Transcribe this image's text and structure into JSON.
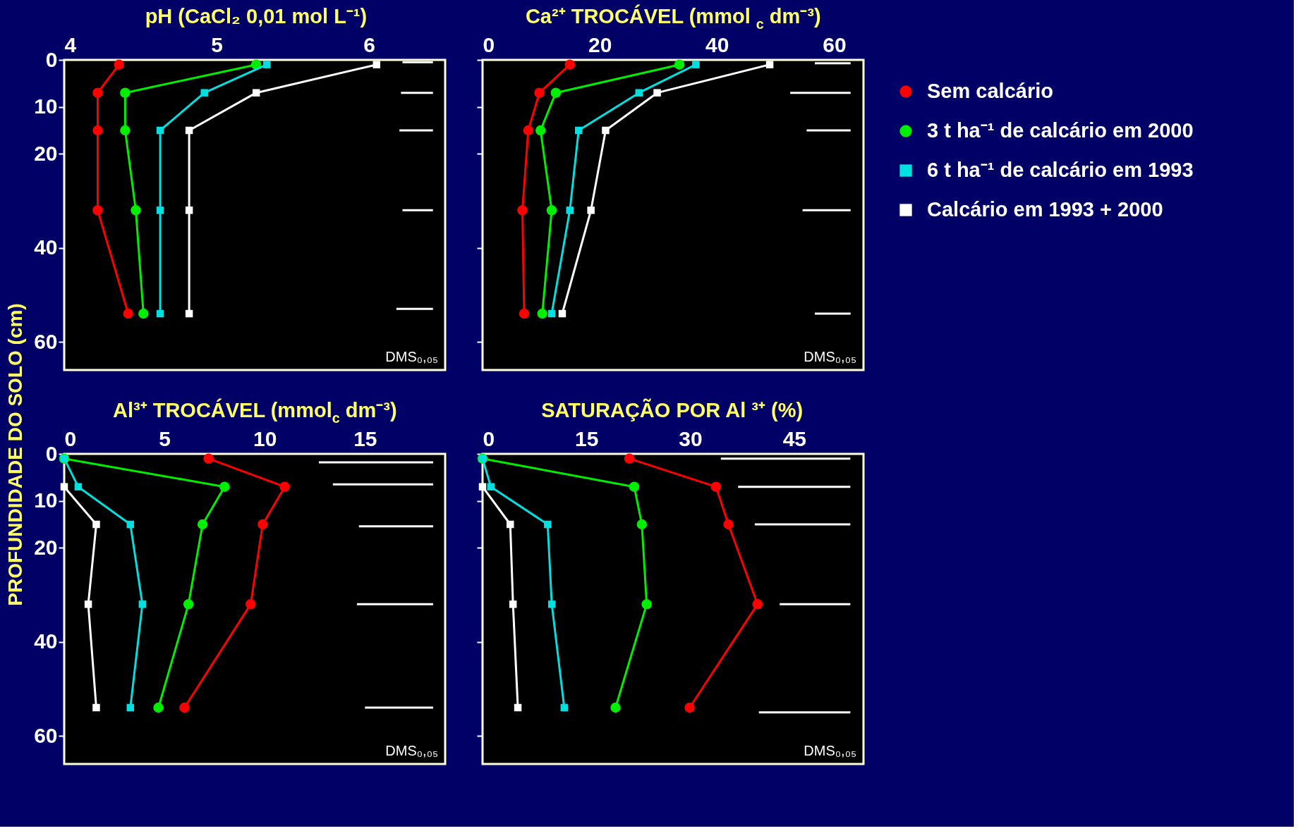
{
  "chart_data": [
    {
      "type": "line",
      "title": "pH (CaCl₂ 0,01 mol L⁻¹)",
      "ylabel": "PROFUNDIDADE DO SOLO (cm)",
      "xlim": [
        4,
        6.5
      ],
      "xticks": [
        4,
        5,
        6
      ],
      "ylim": [
        66,
        0
      ],
      "yticks": [
        0,
        10,
        20,
        40,
        60
      ],
      "annotations": [
        "DMS₀,₀₅"
      ],
      "series": [
        {
          "color": "#ff0000",
          "marker": "circle",
          "x": [
            4.36,
            4.22,
            4.22,
            4.22,
            4.42
          ],
          "values": [
            1,
            7,
            15,
            32,
            54
          ]
        },
        {
          "color": "#00ee00",
          "marker": "circle",
          "x": [
            5.26,
            4.4,
            4.4,
            4.47,
            4.52
          ],
          "values": [
            1,
            7,
            15,
            32,
            54
          ]
        },
        {
          "color": "#00e0e0",
          "marker": "square",
          "x": [
            5.33,
            4.92,
            4.63,
            4.63,
            4.63
          ],
          "values": [
            1,
            7,
            15,
            32,
            54
          ]
        },
        {
          "color": "#ffffff",
          "marker": "square",
          "x": [
            6.05,
            5.26,
            4.82,
            4.82,
            4.82
          ],
          "values": [
            1,
            7,
            15,
            32,
            54
          ]
        },
        {
          "color": "#ffffff",
          "marker": "none",
          "x": [
            6.22,
            6.42
          ],
          "values": [
            0.5,
            0.5
          ]
        },
        {
          "color": "#ffffff",
          "marker": "none",
          "x": [
            6.21,
            6.42
          ],
          "values": [
            7,
            7
          ]
        },
        {
          "color": "#ffffff",
          "marker": "none",
          "x": [
            6.2,
            6.42
          ],
          "values": [
            15,
            15
          ]
        },
        {
          "color": "#ffffff",
          "marker": "none",
          "x": [
            6.22,
            6.42
          ],
          "values": [
            32,
            32
          ]
        },
        {
          "color": "#ffffff",
          "marker": "none",
          "x": [
            6.18,
            6.42
          ],
          "values": [
            53,
            53
          ]
        }
      ]
    },
    {
      "type": "line",
      "title": "Ca²⁺ TROCÁVEL  (mmol$_{c}$ dm⁻³)",
      "xlim": [
        0,
        65
      ],
      "xticks": [
        0,
        20,
        40,
        60
      ],
      "ylim": [
        66,
        0
      ],
      "yticks": [
        0,
        10,
        20,
        40,
        60
      ],
      "tick_labels": "x",
      "legend": "right",
      "annotations": [
        "DMS₀,₀₅"
      ],
      "series": [
        {
          "name": "Sem calcário",
          "color": "#ff0000",
          "marker": "circle",
          "x": [
            14.9,
            9.7,
            7.8,
            6.8,
            7.1
          ],
          "values": [
            1,
            7,
            15,
            32,
            54
          ]
        },
        {
          "name": "3 t ha⁻¹ de calcário em 2000",
          "color": "#00ee00",
          "marker": "circle",
          "x": [
            33.6,
            12.5,
            9.9,
            11.8,
            10.2
          ],
          "values": [
            1,
            7,
            15,
            32,
            54
          ]
        },
        {
          "name": "6 t ha⁻¹ de calcário em 1993",
          "color": "#00e0e0",
          "marker": "square",
          "x": [
            36.4,
            26.7,
            16.4,
            14.9,
            11.8
          ],
          "values": [
            1,
            7,
            15,
            32,
            54
          ]
        },
        {
          "name": "Calcário em 1993 + 2000",
          "color": "#ffffff",
          "marker": "square",
          "x": [
            49.0,
            29.8,
            21.0,
            18.5,
            13.6
          ],
          "values": [
            1,
            7,
            15,
            32,
            54
          ]
        },
        {
          "color": "#ffffff",
          "marker": "none",
          "x": [
            56.7,
            62.8
          ],
          "values": [
            0.7,
            0.7
          ]
        },
        {
          "color": "#ffffff",
          "marker": "none",
          "x": [
            52.5,
            62.8
          ],
          "values": [
            7,
            7
          ]
        },
        {
          "color": "#ffffff",
          "marker": "none",
          "x": [
            55.3,
            62.8
          ],
          "values": [
            15,
            15
          ]
        },
        {
          "color": "#ffffff",
          "marker": "none",
          "x": [
            54.6,
            62.8
          ],
          "values": [
            32,
            32
          ]
        },
        {
          "color": "#ffffff",
          "marker": "none",
          "x": [
            56.7,
            62.8
          ],
          "values": [
            54,
            54
          ]
        }
      ]
    },
    {
      "type": "line",
      "title": "Al³⁺ TROCÁVEL (mmol$_{c}$ dm⁻³)",
      "xlim": [
        0,
        19
      ],
      "xticks": [
        0,
        5,
        10,
        15
      ],
      "ylim": [
        66,
        0
      ],
      "yticks": [
        0,
        10,
        20,
        40,
        60
      ],
      "annotations": [
        "DMS₀,₀₅"
      ],
      "series": [
        {
          "color": "#ff0000",
          "marker": "circle",
          "x": [
            7.2,
            11.0,
            9.9,
            9.3,
            6.0
          ],
          "values": [
            1,
            7,
            15,
            32,
            54
          ]
        },
        {
          "color": "#00ee00",
          "marker": "circle",
          "x": [
            0,
            8.0,
            6.9,
            6.2,
            4.7
          ],
          "values": [
            1,
            7,
            15,
            32,
            54
          ]
        },
        {
          "color": "#00e0e0",
          "marker": "square",
          "x": [
            0,
            0.7,
            3.3,
            3.9,
            3.3
          ],
          "values": [
            1,
            7,
            15,
            32,
            54
          ]
        },
        {
          "color": "#ffffff",
          "marker": "square",
          "x": [
            0,
            1.6,
            1.2,
            1.6
          ],
          "values": [
            7,
            15,
            32,
            54
          ]
        },
        {
          "color": "#ffffff",
          "marker": "none",
          "x": [
            12.7,
            18.4
          ],
          "values": [
            1.8,
            1.8
          ]
        },
        {
          "color": "#ffffff",
          "marker": "none",
          "x": [
            13.4,
            18.4
          ],
          "values": [
            6.5,
            6.5
          ]
        },
        {
          "color": "#ffffff",
          "marker": "none",
          "x": [
            14.7,
            18.4
          ],
          "values": [
            15.4,
            15.4
          ]
        },
        {
          "color": "#ffffff",
          "marker": "none",
          "x": [
            14.6,
            18.4
          ],
          "values": [
            32,
            32
          ]
        },
        {
          "color": "#ffffff",
          "marker": "none",
          "x": [
            15.0,
            18.4
          ],
          "values": [
            54,
            54
          ]
        }
      ]
    },
    {
      "type": "line",
      "title": "SATURAÇÃO POR Al ³⁺ (%)",
      "xlim": [
        0,
        55
      ],
      "xticks": [
        0,
        15,
        30,
        45
      ],
      "ylim": [
        66,
        0
      ],
      "yticks": [
        0,
        10,
        20,
        40,
        60
      ],
      "tick_labels": "x",
      "annotations": [
        "DMS₀,₀₅"
      ],
      "series": [
        {
          "color": "#ff0000",
          "marker": "circle",
          "x": [
            21.2,
            33.7,
            35.5,
            39.7,
            29.9
          ],
          "values": [
            1,
            7,
            15,
            32,
            54
          ]
        },
        {
          "color": "#00ee00",
          "marker": "circle",
          "x": [
            0,
            21.9,
            23.0,
            23.7,
            19.2
          ],
          "values": [
            1,
            7,
            15,
            32,
            54
          ]
        },
        {
          "color": "#00e0e0",
          "marker": "square",
          "x": [
            0,
            1.2,
            9.4,
            10.0,
            11.8
          ],
          "values": [
            1,
            7,
            15,
            32,
            54
          ]
        },
        {
          "color": "#ffffff",
          "marker": "square",
          "x": [
            0,
            4.0,
            4.4,
            5.1
          ],
          "values": [
            7,
            15,
            32,
            54
          ]
        },
        {
          "color": "#ffffff",
          "marker": "none",
          "x": [
            34.4,
            53.1
          ],
          "values": [
            1,
            1
          ]
        },
        {
          "color": "#ffffff",
          "marker": "none",
          "x": [
            36.9,
            53.1
          ],
          "values": [
            7,
            7
          ]
        },
        {
          "color": "#ffffff",
          "marker": "none",
          "x": [
            39.3,
            53.1
          ],
          "values": [
            15,
            15
          ]
        },
        {
          "color": "#ffffff",
          "marker": "none",
          "x": [
            42.9,
            53.1
          ],
          "values": [
            32,
            32
          ]
        },
        {
          "color": "#ffffff",
          "marker": "none",
          "x": [
            39.9,
            53.1
          ],
          "values": [
            55,
            55
          ]
        }
      ]
    }
  ]
}
